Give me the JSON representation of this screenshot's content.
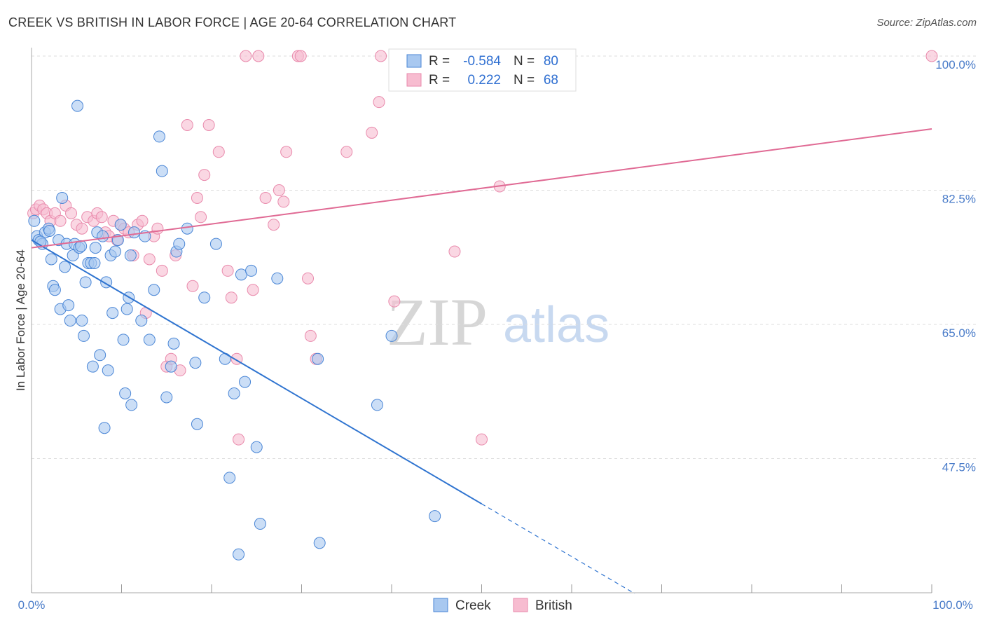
{
  "title": "CREEK VS BRITISH IN LABOR FORCE | AGE 20-64 CORRELATION CHART",
  "source": "Source: ZipAtlas.com",
  "watermark": {
    "zip": "ZIP",
    "atlas": "atlas"
  },
  "colors": {
    "creek_fill": "#a8c8f0",
    "creek_stroke": "#4a86d6",
    "creek_line": "#2f74d0",
    "british_fill": "#f7bcd0",
    "british_stroke": "#e98aac",
    "british_line": "#e06a94",
    "grid": "#dddddd",
    "axis": "#999999",
    "tick_text": "#4a7cc9"
  },
  "legend": {
    "creek": {
      "r_label": "R =",
      "r_value": "-0.584",
      "n_label": "N =",
      "n_value": "80"
    },
    "british": {
      "r_label": "R =",
      "r_value": "0.222",
      "n_label": "N =",
      "n_value": "68"
    }
  },
  "bottom_legend": {
    "creek": "Creek",
    "british": "British"
  },
  "chart_data": {
    "type": "scatter",
    "title": "CREEK VS BRITISH IN LABOR FORCE | AGE 20-64 CORRELATION CHART",
    "xlabel": "",
    "ylabel": "In Labor Force | Age 20-64",
    "xlim": [
      0,
      100
    ],
    "ylim": [
      28,
      102
    ],
    "x_tick_labels": [
      "0.0%",
      "100.0%"
    ],
    "y_ticks": [
      47.5,
      65.0,
      82.5,
      100.0
    ],
    "y_tick_labels": [
      "47.5%",
      "65.0%",
      "82.5%",
      "100.0%"
    ],
    "grid": true,
    "series": [
      {
        "name": "Creek",
        "trend": {
          "x0": 0,
          "y0": 76.0,
          "x1": 50,
          "y1": 41.6,
          "dash_x1": 67,
          "dash_y1": 29.9
        },
        "points": [
          [
            0.3,
            78.5
          ],
          [
            0.6,
            76.5
          ],
          [
            0.8,
            76.0
          ],
          [
            1.2,
            75.5
          ],
          [
            1.5,
            77.0
          ],
          [
            1.9,
            77.5
          ],
          [
            2.2,
            73.5
          ],
          [
            2.4,
            70.0
          ],
          [
            2.6,
            69.5
          ],
          [
            3.0,
            76.0
          ],
          [
            3.2,
            67.0
          ],
          [
            3.4,
            81.5
          ],
          [
            3.7,
            72.5
          ],
          [
            3.9,
            75.5
          ],
          [
            4.1,
            67.5
          ],
          [
            4.3,
            65.5
          ],
          [
            4.6,
            74.0
          ],
          [
            4.8,
            75.5
          ],
          [
            5.1,
            93.5
          ],
          [
            5.3,
            75.0
          ],
          [
            5.6,
            65.5
          ],
          [
            5.8,
            63.5
          ],
          [
            6.0,
            70.5
          ],
          [
            6.3,
            73.0
          ],
          [
            6.6,
            73.0
          ],
          [
            6.8,
            59.5
          ],
          [
            7.1,
            75.0
          ],
          [
            7.3,
            77.0
          ],
          [
            7.6,
            61.0
          ],
          [
            7.9,
            76.5
          ],
          [
            8.1,
            51.5
          ],
          [
            8.3,
            70.5
          ],
          [
            8.5,
            59.0
          ],
          [
            8.8,
            74.0
          ],
          [
            9.0,
            66.5
          ],
          [
            9.3,
            74.5
          ],
          [
            9.6,
            76.0
          ],
          [
            9.9,
            78.0
          ],
          [
            10.2,
            63.0
          ],
          [
            10.4,
            56.0
          ],
          [
            10.6,
            67.0
          ],
          [
            10.8,
            68.5
          ],
          [
            11.1,
            54.5
          ],
          [
            11.4,
            77.0
          ],
          [
            12.2,
            65.5
          ],
          [
            12.6,
            76.5
          ],
          [
            13.1,
            63.0
          ],
          [
            13.6,
            69.5
          ],
          [
            14.2,
            89.5
          ],
          [
            14.5,
            85.0
          ],
          [
            15.0,
            55.5
          ],
          [
            15.5,
            59.5
          ],
          [
            15.8,
            62.5
          ],
          [
            16.1,
            74.5
          ],
          [
            16.4,
            75.5
          ],
          [
            17.3,
            77.5
          ],
          [
            18.2,
            60.0
          ],
          [
            18.4,
            52.0
          ],
          [
            19.2,
            68.5
          ],
          [
            20.5,
            75.5
          ],
          [
            21.5,
            60.5
          ],
          [
            22.0,
            45.0
          ],
          [
            22.5,
            56.0
          ],
          [
            23.0,
            35.0
          ],
          [
            23.3,
            71.5
          ],
          [
            23.7,
            57.5
          ],
          [
            24.4,
            72.0
          ],
          [
            25.0,
            49.0
          ],
          [
            25.4,
            39.0
          ],
          [
            27.3,
            71.0
          ],
          [
            31.8,
            60.5
          ],
          [
            32.0,
            36.5
          ],
          [
            38.4,
            54.5
          ],
          [
            40.0,
            63.5
          ],
          [
            44.8,
            40.0
          ],
          [
            1.0,
            75.8
          ],
          [
            2.0,
            77.2
          ],
          [
            5.5,
            75.2
          ],
          [
            7.0,
            73.0
          ],
          [
            11.0,
            74.0
          ]
        ]
      },
      {
        "name": "British",
        "trend": {
          "x0": 0,
          "y0": 75.0,
          "x1": 100,
          "y1": 90.5
        },
        "points": [
          [
            0.2,
            79.5
          ],
          [
            0.5,
            80.0
          ],
          [
            0.9,
            80.5
          ],
          [
            1.3,
            80.0
          ],
          [
            1.7,
            79.5
          ],
          [
            2.1,
            78.5
          ],
          [
            2.6,
            79.5
          ],
          [
            3.2,
            78.5
          ],
          [
            3.8,
            80.5
          ],
          [
            4.4,
            79.5
          ],
          [
            5.0,
            78.0
          ],
          [
            5.6,
            77.5
          ],
          [
            6.2,
            79.0
          ],
          [
            6.9,
            78.5
          ],
          [
            7.3,
            79.5
          ],
          [
            7.8,
            79.0
          ],
          [
            8.2,
            77.0
          ],
          [
            8.6,
            76.5
          ],
          [
            9.1,
            78.5
          ],
          [
            9.5,
            76.0
          ],
          [
            9.9,
            78.0
          ],
          [
            10.3,
            77.5
          ],
          [
            10.8,
            77.0
          ],
          [
            11.3,
            74.0
          ],
          [
            11.8,
            78.0
          ],
          [
            12.3,
            78.5
          ],
          [
            12.7,
            66.5
          ],
          [
            13.1,
            73.5
          ],
          [
            13.6,
            76.5
          ],
          [
            14.0,
            77.5
          ],
          [
            14.5,
            72.0
          ],
          [
            15.0,
            59.5
          ],
          [
            15.5,
            60.5
          ],
          [
            16.0,
            74.0
          ],
          [
            16.5,
            59.0
          ],
          [
            17.3,
            91.0
          ],
          [
            17.9,
            70.0
          ],
          [
            18.4,
            81.5
          ],
          [
            18.8,
            79.0
          ],
          [
            19.2,
            84.5
          ],
          [
            19.7,
            91.0
          ],
          [
            20.8,
            87.5
          ],
          [
            21.8,
            72.0
          ],
          [
            22.2,
            68.5
          ],
          [
            22.8,
            60.5
          ],
          [
            23.0,
            50.0
          ],
          [
            23.8,
            100.0
          ],
          [
            24.6,
            69.5
          ],
          [
            25.2,
            100.0
          ],
          [
            26.0,
            81.5
          ],
          [
            26.9,
            78.0
          ],
          [
            27.5,
            82.5
          ],
          [
            28.0,
            81.0
          ],
          [
            28.3,
            87.5
          ],
          [
            29.6,
            100.0
          ],
          [
            29.9,
            100.0
          ],
          [
            30.7,
            71.0
          ],
          [
            31.0,
            63.5
          ],
          [
            31.6,
            60.5
          ],
          [
            35.0,
            87.5
          ],
          [
            37.8,
            90.0
          ],
          [
            38.6,
            94.0
          ],
          [
            38.8,
            100.0
          ],
          [
            40.3,
            68.0
          ],
          [
            47.0,
            74.5
          ],
          [
            50.0,
            50.0
          ],
          [
            52.0,
            83.0
          ],
          [
            100.0,
            100.0
          ]
        ]
      }
    ]
  }
}
